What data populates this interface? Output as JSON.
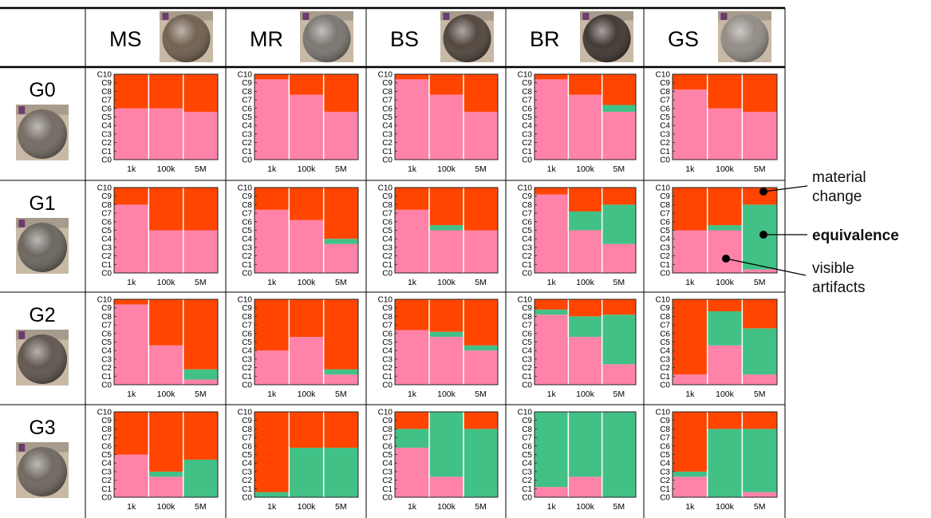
{
  "columns": [
    {
      "label": "MS",
      "tone": "#6b5a48"
    },
    {
      "label": "MR",
      "tone": "#75706a"
    },
    {
      "label": "BS",
      "tone": "#4a3f36"
    },
    {
      "label": "BR",
      "tone": "#3a302a"
    },
    {
      "label": "GS",
      "tone": "#8e8880"
    }
  ],
  "rows": [
    {
      "label": "G0",
      "tone": "#6e655c"
    },
    {
      "label": "G1",
      "tone": "#666058"
    },
    {
      "label": "G2",
      "tone": "#5a5048"
    },
    {
      "label": "G3",
      "tone": "#6a625a"
    }
  ],
  "colors": {
    "material_change": "#ff4500",
    "equivalence": "#42c187",
    "visible_artifacts": "#ff82a8"
  },
  "legend": {
    "material_change": "material\nchange",
    "equivalence": "equivalence",
    "visible_artifacts": "visible\nartifacts"
  },
  "chart_data": {
    "type": "bar",
    "stacked": true,
    "y_ticks": [
      "C0",
      "C1",
      "C2",
      "C3",
      "C4",
      "C5",
      "C6",
      "C7",
      "C8",
      "C9",
      "C10"
    ],
    "y_range": [
      0,
      10
    ],
    "x_categories": [
      "1k",
      "100k",
      "5M"
    ],
    "segments_order": [
      "visible artifacts",
      "equivalence",
      "material change"
    ],
    "cells": [
      [
        {
          "col": "MS",
          "bars": [
            [
              6,
              0,
              4
            ],
            [
              6,
              0,
              4
            ],
            [
              5.6,
              0,
              4.4
            ]
          ]
        },
        {
          "col": "MR",
          "bars": [
            [
              9.4,
              0,
              0.6
            ],
            [
              7.6,
              0,
              2.4
            ],
            [
              5.6,
              0,
              4.4
            ]
          ]
        },
        {
          "col": "BS",
          "bars": [
            [
              9.4,
              0,
              0.6
            ],
            [
              7.6,
              0,
              2.4
            ],
            [
              5.6,
              0,
              4.4
            ]
          ]
        },
        {
          "col": "BR",
          "bars": [
            [
              9.4,
              0,
              0.6
            ],
            [
              7.6,
              0,
              2.4
            ],
            [
              5.6,
              0.8,
              3.6
            ]
          ]
        },
        {
          "col": "GS",
          "bars": [
            [
              8.2,
              0,
              1.8
            ],
            [
              6,
              0,
              4
            ],
            [
              5.6,
              0,
              4.4
            ]
          ]
        }
      ],
      [
        {
          "col": "MS",
          "bars": [
            [
              8,
              0,
              2
            ],
            [
              5,
              0,
              5
            ],
            [
              5,
              0,
              5
            ]
          ]
        },
        {
          "col": "MR",
          "bars": [
            [
              7.4,
              0,
              2.6
            ],
            [
              6.2,
              0,
              3.8
            ],
            [
              3.4,
              0.6,
              6
            ]
          ]
        },
        {
          "col": "BS",
          "bars": [
            [
              7.4,
              0,
              2.6
            ],
            [
              5,
              0.6,
              4.4
            ],
            [
              5,
              0,
              5
            ]
          ]
        },
        {
          "col": "BR",
          "bars": [
            [
              9.2,
              0,
              0.8
            ],
            [
              5,
              2.2,
              2.8
            ],
            [
              3.4,
              4.6,
              2
            ]
          ]
        },
        {
          "col": "GS",
          "bars": [
            [
              5,
              0,
              5
            ],
            [
              5,
              0.6,
              4.4
            ],
            [
              0.4,
              7.6,
              2
            ]
          ]
        }
      ],
      [
        {
          "col": "MS",
          "bars": [
            [
              9.4,
              0,
              0.6
            ],
            [
              4.6,
              0,
              5.4
            ],
            [
              0.6,
              1.2,
              8.2
            ]
          ]
        },
        {
          "col": "MR",
          "bars": [
            [
              4,
              0,
              6
            ],
            [
              5.6,
              0,
              4.4
            ],
            [
              1.2,
              0.6,
              8.2
            ]
          ]
        },
        {
          "col": "BS",
          "bars": [
            [
              6.4,
              0,
              3.6
            ],
            [
              5.6,
              0.6,
              3.8
            ],
            [
              4,
              0.6,
              5.4
            ]
          ]
        },
        {
          "col": "BR",
          "bars": [
            [
              8.2,
              0.6,
              1.2
            ],
            [
              5.6,
              2.4,
              2
            ],
            [
              2.4,
              5.8,
              1.8
            ]
          ]
        },
        {
          "col": "GS",
          "bars": [
            [
              1.2,
              0,
              8.8
            ],
            [
              4.6,
              4,
              1.4
            ],
            [
              1.2,
              5.4,
              3.4
            ]
          ]
        }
      ],
      [
        {
          "col": "MS",
          "bars": [
            [
              5,
              0,
              5
            ],
            [
              2.4,
              0.6,
              7
            ],
            [
              0,
              4.4,
              5.6
            ]
          ]
        },
        {
          "col": "MR",
          "bars": [
            [
              0,
              0.6,
              9.4
            ],
            [
              0,
              5.8,
              4.2
            ],
            [
              0,
              5.8,
              4.2
            ]
          ]
        },
        {
          "col": "BS",
          "bars": [
            [
              5.8,
              2.2,
              2
            ],
            [
              2.4,
              7.6,
              0
            ],
            [
              0,
              8,
              2
            ]
          ]
        },
        {
          "col": "BR",
          "bars": [
            [
              1.2,
              8.8,
              0
            ],
            [
              2.4,
              7.6,
              0
            ],
            [
              0,
              10,
              0
            ]
          ]
        },
        {
          "col": "GS",
          "bars": [
            [
              2.4,
              0.6,
              7
            ],
            [
              0,
              8,
              2
            ],
            [
              0.6,
              7.4,
              2
            ]
          ]
        }
      ]
    ]
  }
}
